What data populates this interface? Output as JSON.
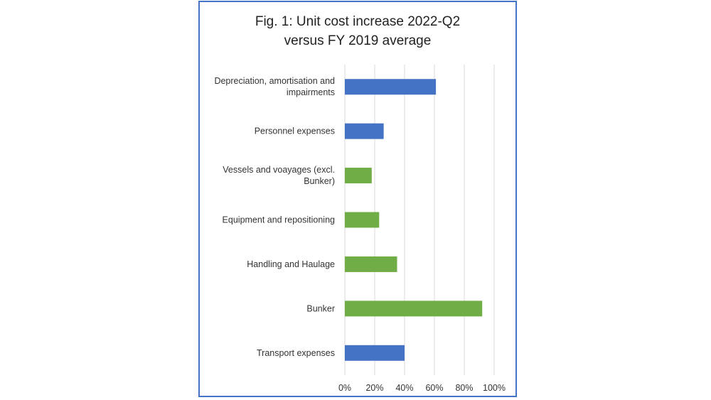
{
  "chart_data": {
    "type": "bar",
    "orientation": "horizontal",
    "title_lines": [
      "Fig. 1: Unit cost increase 2022-Q2",
      "versus FY 2019 average"
    ],
    "categories": [
      [
        "Depreciation, amortisation and",
        "impairments"
      ],
      [
        "Personnel expenses"
      ],
      [
        "Vessels and voayages (excl.",
        "Bunker)"
      ],
      [
        "Equipment and repositioning"
      ],
      [
        "Handling and Haulage"
      ],
      [
        "Bunker"
      ],
      [
        "Transport expenses"
      ]
    ],
    "values": [
      0.61,
      0.26,
      0.18,
      0.23,
      0.35,
      0.92,
      0.4
    ],
    "bar_colors": [
      "#4472c4",
      "#4472c4",
      "#70ad47",
      "#70ad47",
      "#70ad47",
      "#70ad47",
      "#4472c4"
    ],
    "xlim": [
      0,
      1.0
    ],
    "x_ticks": [
      0,
      0.2,
      0.4,
      0.6,
      0.8,
      1.0
    ],
    "x_tick_labels": [
      "0%",
      "20%",
      "40%",
      "60%",
      "80%",
      "100%"
    ],
    "grid": true,
    "legend": "none"
  }
}
